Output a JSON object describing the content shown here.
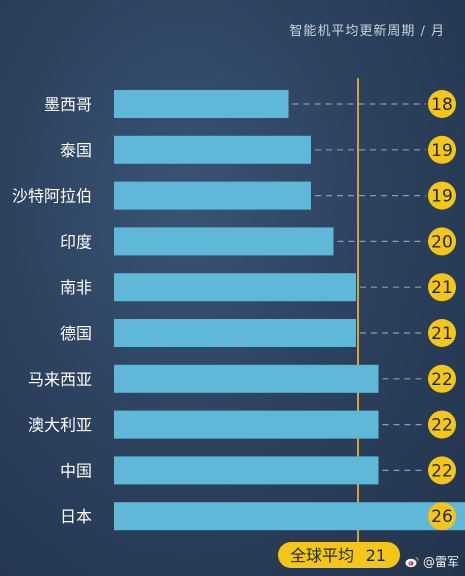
{
  "chart_data": {
    "type": "bar",
    "orientation": "horizontal",
    "subtitle": "智能机平均更新周期 / 月",
    "categories": [
      "墨西哥",
      "泰国",
      "沙特阿拉伯",
      "印度",
      "南非",
      "德国",
      "马来西亚",
      "澳大利亚",
      "中国",
      "日本"
    ],
    "values": [
      18,
      19,
      19,
      20,
      21,
      21,
      22,
      22,
      22,
      26
    ],
    "value_labels": [
      "18",
      "19",
      "19",
      "20",
      "21",
      "21",
      "22",
      "22",
      "22",
      "26"
    ],
    "reference_line": {
      "label": "全球平均",
      "value": 21,
      "value_label": "21"
    },
    "colors": {
      "bar": "#5fb8d8",
      "badge": "#f5c518",
      "reference": "#f5c518",
      "label_text": "#ffffff",
      "dash": "#8a9bb2"
    },
    "grid": false,
    "legend": "none"
  },
  "watermark": {
    "text": "@雷军",
    "icon": "weibo-icon"
  }
}
